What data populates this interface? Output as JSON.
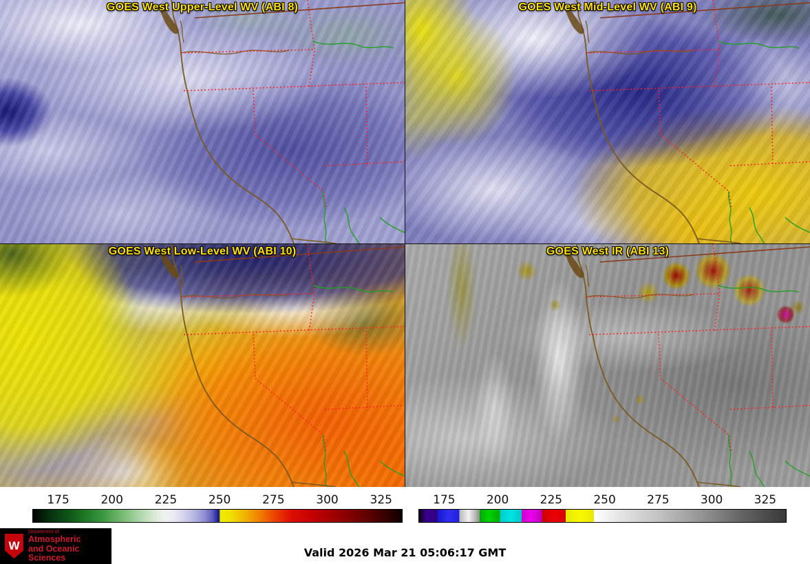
{
  "app": {
    "name": "GOES West satellite quad-panel display"
  },
  "panels": [
    {
      "title": "GOES West Upper-Level WV (ABI 8)"
    },
    {
      "title": "GOES West Mid-Level WV (ABI 9)"
    },
    {
      "title": "GOES West Low-Level WV (ABI 10)"
    },
    {
      "title": "GOES West IR (ABI 13)"
    }
  ],
  "colorbars": {
    "wv": {
      "ticks": [
        "175",
        "200",
        "225",
        "250",
        "275",
        "300",
        "325"
      ]
    },
    "ir": {
      "ticks": [
        "175",
        "200",
        "225",
        "250",
        "275",
        "300",
        "325"
      ]
    }
  },
  "footer": {
    "valid_time": "Valid 2026 Mar 21 05:06:17 GMT",
    "logo": {
      "dept_label": "Department of",
      "name_line1": "Atmospheric",
      "name_line2": "and Oceanic Sciences",
      "crest_letter": "W"
    }
  },
  "colors": {
    "panel_title_text": "#ffe000",
    "logo_red": "#d01a2e",
    "state_border": "#ff2020",
    "coastline": "#7a5a1e",
    "river_green": "#21a021"
  }
}
